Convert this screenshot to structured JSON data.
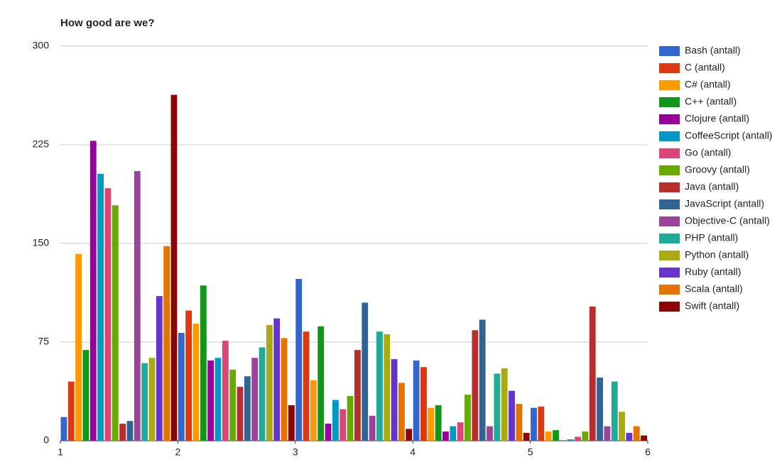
{
  "chart_data": {
    "type": "bar",
    "title": "How good are we?",
    "x": [
      1,
      2,
      3,
      4,
      5
    ],
    "xlim": [
      1,
      6
    ],
    "xticks": [
      1,
      2,
      3,
      4,
      5,
      6
    ],
    "ylim": [
      0,
      300
    ],
    "yticks": [
      0,
      75,
      150,
      225,
      300
    ],
    "grid": true,
    "legend": "right",
    "series": [
      {
        "name": "Bash (antall)",
        "color": "#3366cc",
        "values": [
          18,
          82,
          123,
          61,
          25
        ]
      },
      {
        "name": "C (antall)",
        "color": "#dc3912",
        "values": [
          45,
          99,
          83,
          56,
          26
        ]
      },
      {
        "name": "C# (antall)",
        "color": "#ff9900",
        "values": [
          142,
          89,
          46,
          25,
          7
        ]
      },
      {
        "name": "C++ (antall)",
        "color": "#109618",
        "values": [
          69,
          118,
          87,
          27,
          8
        ]
      },
      {
        "name": "Clojure (antall)",
        "color": "#990099",
        "values": [
          228,
          61,
          13,
          7,
          0
        ]
      },
      {
        "name": "CoffeeScript (antall)",
        "color": "#0099c6",
        "values": [
          203,
          63,
          31,
          11,
          1
        ]
      },
      {
        "name": "Go (antall)",
        "color": "#dd4477",
        "values": [
          192,
          76,
          24,
          14,
          3
        ]
      },
      {
        "name": "Groovy (antall)",
        "color": "#66aa00",
        "values": [
          179,
          54,
          34,
          35,
          7
        ]
      },
      {
        "name": "Java (antall)",
        "color": "#b82e2e",
        "values": [
          13,
          41,
          69,
          84,
          102
        ]
      },
      {
        "name": "JavaScript (antall)",
        "color": "#316395",
        "values": [
          15,
          49,
          105,
          92,
          48
        ]
      },
      {
        "name": "Objective-C (antall)",
        "color": "#994499",
        "values": [
          205,
          63,
          19,
          11,
          11
        ]
      },
      {
        "name": "PHP (antall)",
        "color": "#22aa99",
        "values": [
          59,
          71,
          83,
          51,
          45
        ]
      },
      {
        "name": "Python (antall)",
        "color": "#aaaa11",
        "values": [
          63,
          88,
          81,
          55,
          22
        ]
      },
      {
        "name": "Ruby (antall)",
        "color": "#6633cc",
        "values": [
          110,
          93,
          62,
          38,
          6
        ]
      },
      {
        "name": "Scala (antall)",
        "color": "#e67300",
        "values": [
          148,
          78,
          44,
          28,
          11
        ]
      },
      {
        "name": "Swift (antall)",
        "color": "#8b0707",
        "values": [
          263,
          27,
          9,
          6,
          4
        ]
      }
    ]
  }
}
